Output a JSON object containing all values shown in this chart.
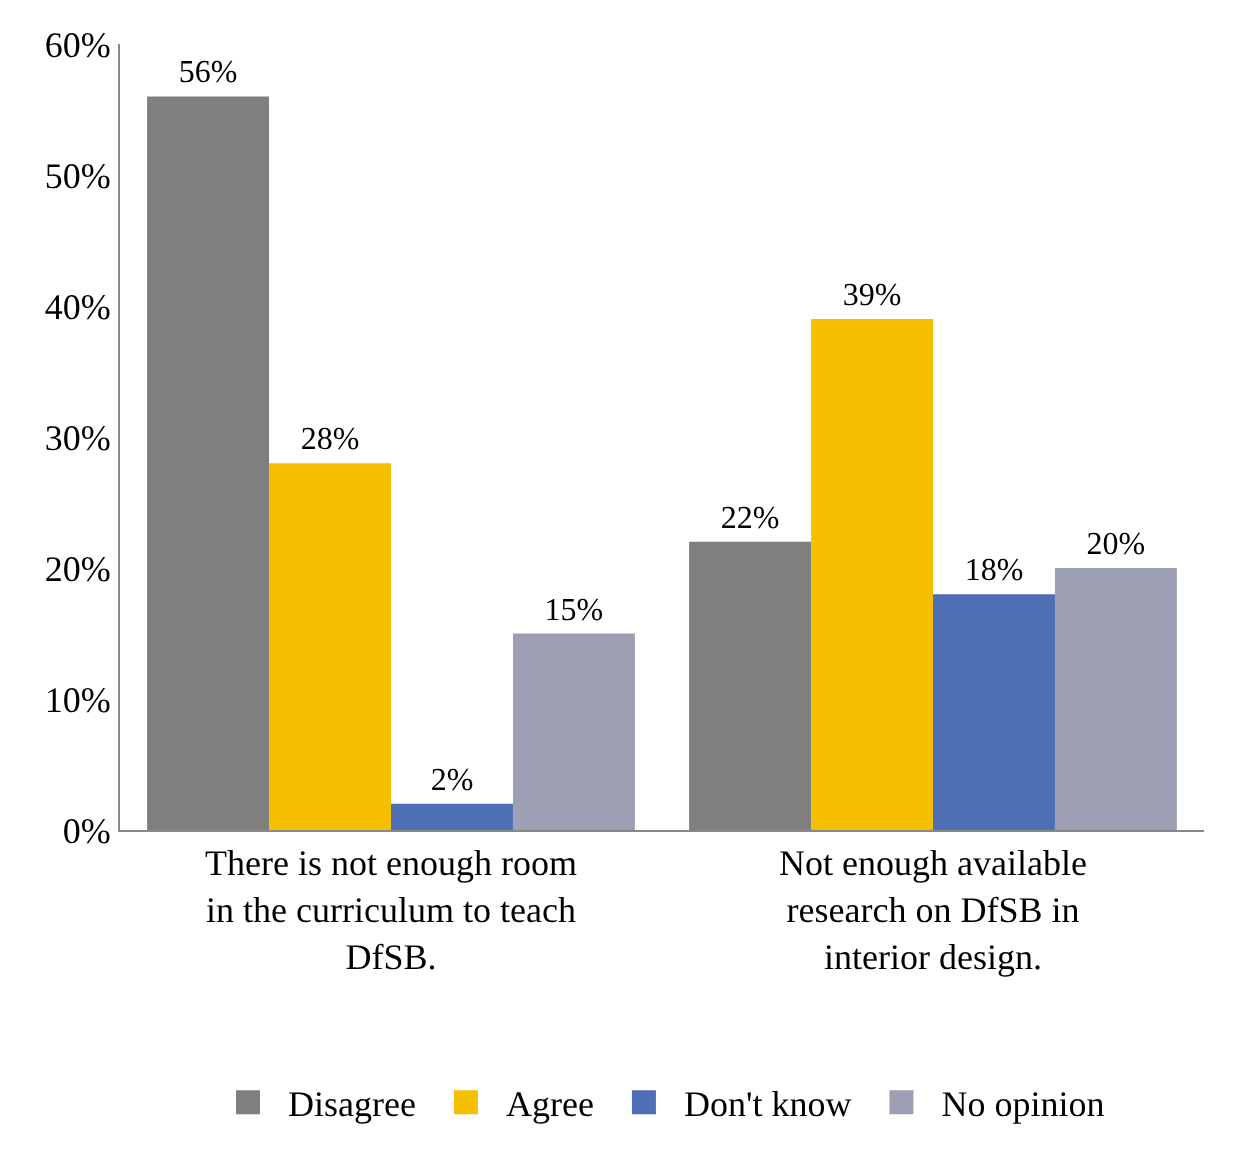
{
  "chart_data": {
    "type": "bar",
    "categories": [
      "There is not enough room in the curriculum to teach DfSB.",
      "Not enough available research on DfSB in interior design."
    ],
    "series": [
      {
        "name": "Disagree",
        "color": "#7f7f7f",
        "values": [
          56,
          22
        ],
        "value_labels": [
          "56%",
          "22%"
        ]
      },
      {
        "name": "Agree",
        "color": "#f5c000",
        "values": [
          28,
          39
        ],
        "value_labels": [
          "28%",
          "39%"
        ]
      },
      {
        "name": "Don't know",
        "color": "#4f6fb5",
        "values": [
          2,
          18
        ],
        "value_labels": [
          "2%",
          "18%"
        ]
      },
      {
        "name": "No opinion",
        "color": "#9d9fb5",
        "values": [
          15,
          20
        ],
        "value_labels": [
          "15%",
          "20%"
        ]
      }
    ],
    "ylim": [
      0,
      60
    ],
    "yticks": [
      {
        "value": 0,
        "label": "0%"
      },
      {
        "value": 10,
        "label": "10%"
      },
      {
        "value": 20,
        "label": "20%"
      },
      {
        "value": 30,
        "label": "30%"
      },
      {
        "value": 40,
        "label": "40%"
      },
      {
        "value": 50,
        "label": "50%"
      },
      {
        "value": 60,
        "label": "60%"
      }
    ],
    "legend": "bottom"
  }
}
